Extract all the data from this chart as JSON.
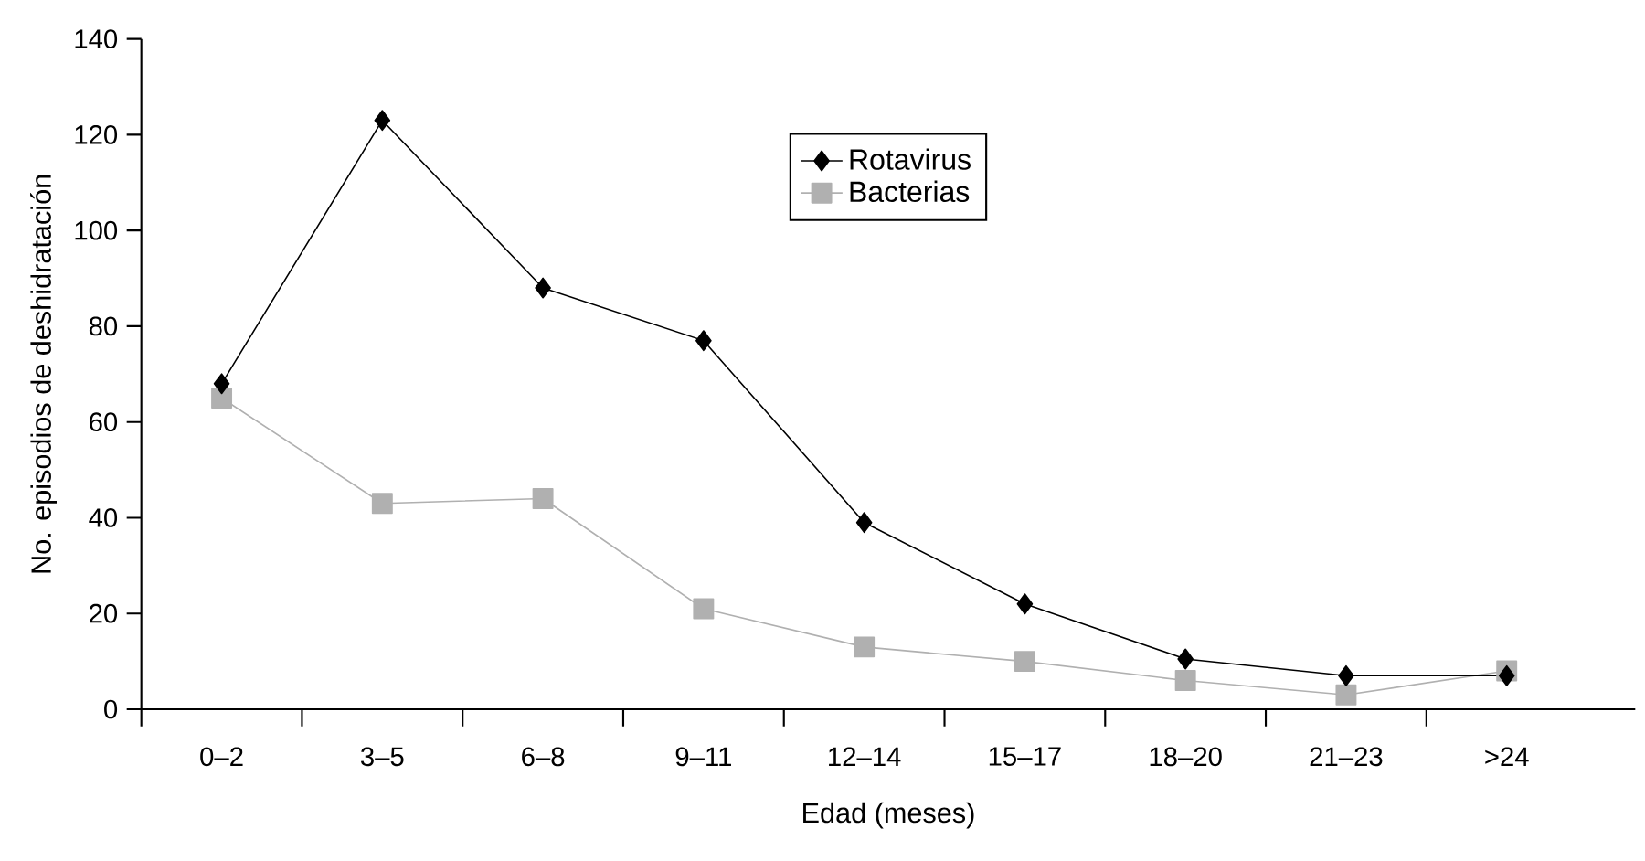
{
  "chart_data": {
    "type": "line",
    "xlabel": "Edad (meses)",
    "ylabel": "No. episodios de deshidratación",
    "categories": [
      "0–2",
      "3–5",
      "6–8",
      "9–11",
      "12–14",
      "15–17",
      "18–20",
      "21–23",
      ">24"
    ],
    "series": [
      {
        "name": "Rotavirus",
        "color": "#000000",
        "marker": "diamond",
        "values": [
          68,
          123,
          88,
          77,
          39,
          22,
          10.5,
          7,
          7
        ]
      },
      {
        "name": "Bacterias",
        "color": "#b0b0b0",
        "marker": "square",
        "values": [
          65,
          43,
          44,
          21,
          13,
          10,
          6,
          3,
          8
        ]
      }
    ],
    "ylim": [
      0,
      140
    ],
    "yticks": [
      0,
      20,
      40,
      60,
      80,
      100,
      120,
      140
    ],
    "legend": "top",
    "grid": false,
    "line_style": "solid"
  }
}
